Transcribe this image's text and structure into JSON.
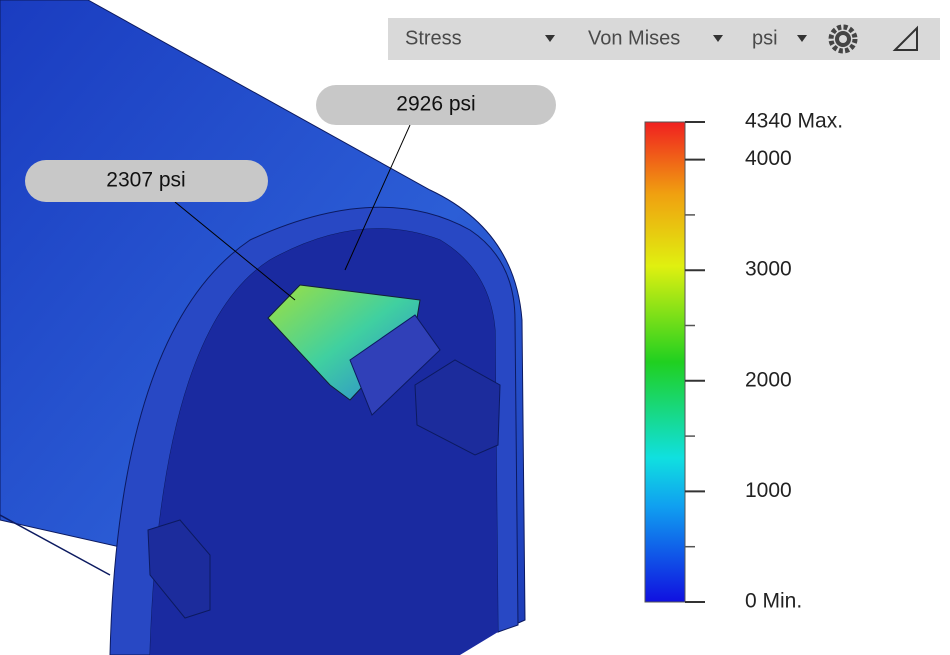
{
  "toolbar": {
    "result": "Stress",
    "criterion": "Von Mises",
    "unit": "psi"
  },
  "probes": [
    {
      "label": "2926 psi"
    },
    {
      "label": "2307 psi"
    }
  ],
  "legend": {
    "range": [
      0,
      4340
    ],
    "ticks": [
      {
        "value": 4340,
        "label": "4340 Max."
      },
      4000,
      3000,
      2000,
      1000,
      {
        "value": 0,
        "label": "0 Min."
      }
    ],
    "minor_ticks": [
      500,
      1500,
      2500,
      3500
    ]
  }
}
